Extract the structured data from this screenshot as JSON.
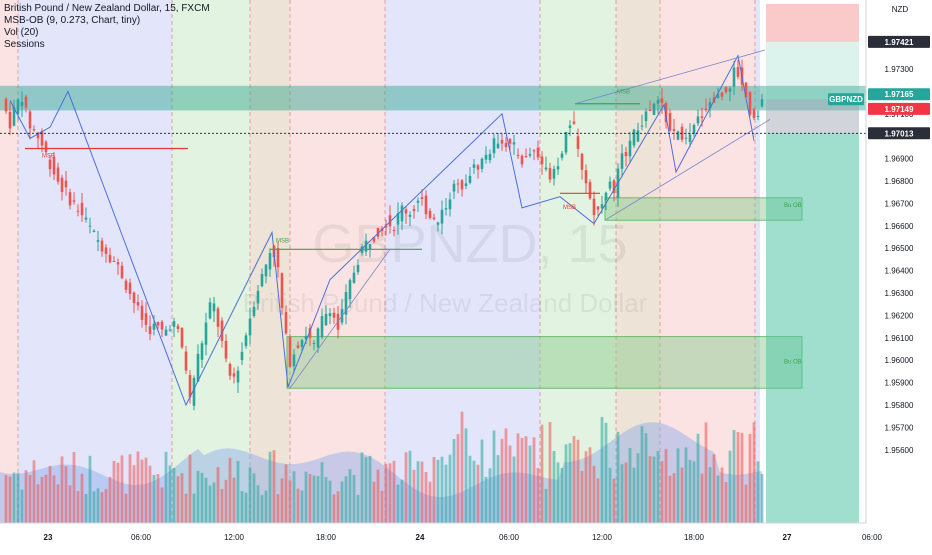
{
  "header": {
    "title": "British Pound / New Zealand Dollar, 15, FXCM",
    "indicators": [
      "MSB-OB (9, 0.273, Chart, tiny)",
      "Vol (20)",
      "Sessions"
    ]
  },
  "watermark": {
    "symbol": "GBPNZD, 15",
    "name": "British Pound / New Zealand Dollar"
  },
  "currency": "NZD",
  "colors": {
    "up": "#26a69a",
    "down": "#ef5350",
    "line": "#4a6fd8",
    "session_blue": "#e3e6fb",
    "session_green": "#e3f3e1",
    "session_tan": "#eee3d7",
    "session_red": "#fbe3e4",
    "zone": "#2aa58c",
    "target": "#52c3a4",
    "stop": "#f7a7a9"
  },
  "chart_data": {
    "type": "candlestick",
    "symbol": "GBPNZD",
    "timeframe": "15",
    "y_range": [
      1.9555,
      1.9745
    ],
    "y_ticks": [
      "1.97300",
      "1.97200",
      "1.97100",
      "1.97000",
      "1.96900",
      "1.96800",
      "1.96700",
      "1.96600",
      "1.96500",
      "1.96400",
      "1.96300",
      "1.96200",
      "1.96100",
      "1.96000",
      "1.95900",
      "1.95800",
      "1.95700",
      "1.95600"
    ],
    "x_ticks": [
      "23",
      "06:00",
      "12:00",
      "18:00",
      "24",
      "06:00",
      "12:00",
      "18:00",
      "27",
      "06:00"
    ],
    "price_labels": [
      {
        "text": "1.97421",
        "value": 1.97421,
        "style": "dark"
      },
      {
        "text": "GBPNZD",
        "value": 1.97165,
        "style": "green"
      },
      {
        "text": "1.97165",
        "value": 1.97165,
        "style": "green"
      },
      {
        "text": "1.97149",
        "value": 1.97149,
        "style": "red"
      },
      {
        "text": "1.97013",
        "value": 1.97013,
        "style": "dark"
      }
    ],
    "annotations": [
      {
        "text": "MSB",
        "color": "red"
      },
      {
        "text": "MSB",
        "color": "green"
      },
      {
        "text": "MSB",
        "color": "red"
      },
      {
        "text": "MSB",
        "color": "green"
      },
      {
        "text": "Bu OB",
        "color": "green"
      },
      {
        "text": "Bu OB",
        "color": "green"
      }
    ],
    "structure_path": [
      [
        1.9716,
        1
      ],
      [
        1.9699,
        2
      ],
      [
        1.9704,
        3
      ],
      [
        1.972,
        4
      ],
      [
        1.958,
        11
      ],
      [
        1.9657,
        15
      ],
      [
        1.9588,
        17
      ],
      [
        1.9636,
        20
      ],
      [
        1.971,
        28
      ],
      [
        1.9668,
        30
      ],
      [
        1.9673,
        33
      ],
      [
        1.9661,
        35
      ],
      [
        1.9714,
        41
      ],
      [
        1.9684,
        43
      ],
      [
        1.9736,
        45
      ],
      [
        1.9698,
        47
      ]
    ]
  }
}
